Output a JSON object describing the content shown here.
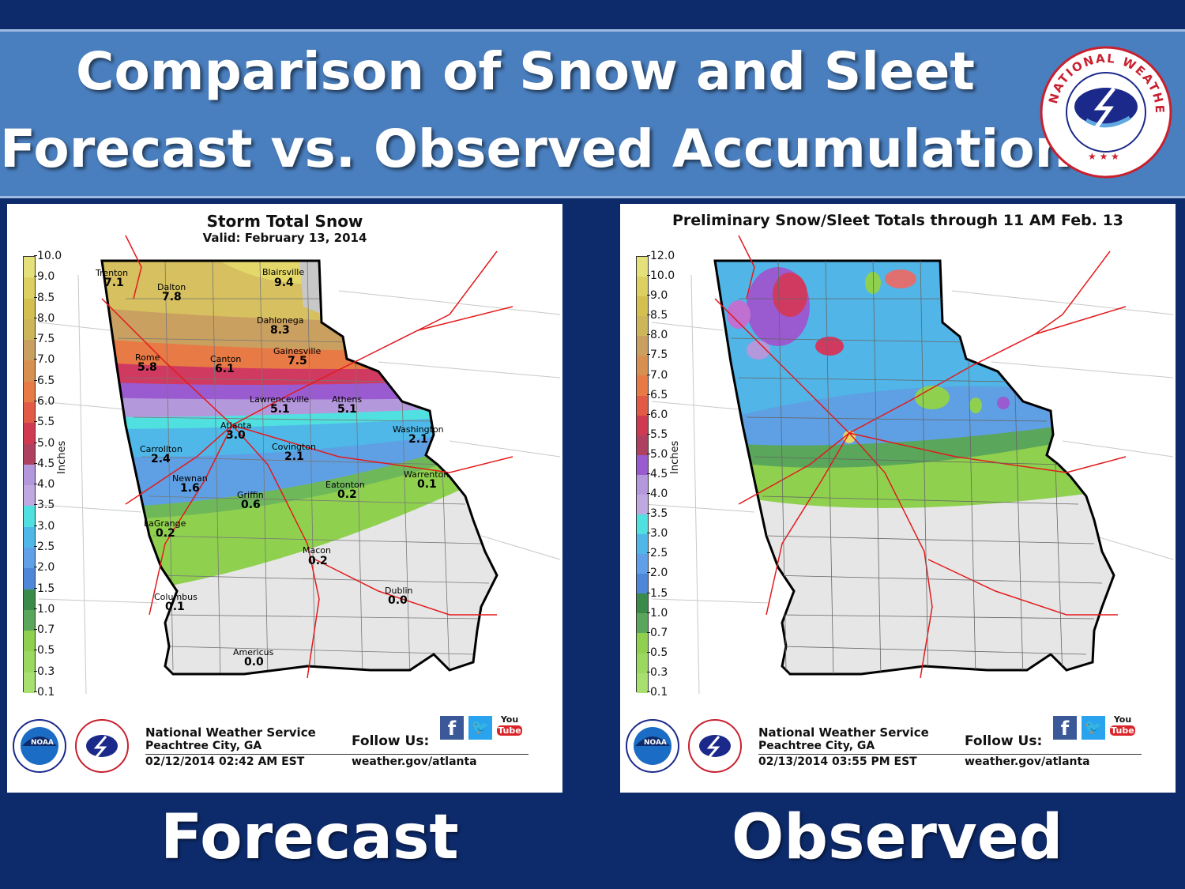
{
  "header": {
    "title_line1": "Comparison of Snow and Sleet",
    "title_line2": "Forecast vs. Observed Accumulations",
    "logo_text": "NATIONAL WEATHER SERVICE"
  },
  "panels": [
    {
      "title": "Storm Total Snow",
      "subtitle": "Valid: February 13, 2014",
      "scale_label": "Inches",
      "scale": [
        "10.0",
        "9.0",
        "8.5",
        "8.0",
        "7.5",
        "7.0",
        "6.5",
        "6.0",
        "5.5",
        "5.0",
        "4.5",
        "4.0",
        "3.5",
        "3.0",
        "2.5",
        "2.0",
        "1.5",
        "1.0",
        "0.7",
        "0.5",
        "0.3",
        "0.1"
      ],
      "cities": [
        {
          "name": "Trenton",
          "value": "7.1"
        },
        {
          "name": "Dalton",
          "value": "7.8"
        },
        {
          "name": "Blairsville",
          "value": "9.4"
        },
        {
          "name": "Dahlonega",
          "value": "8.3"
        },
        {
          "name": "Gainesville",
          "value": "7.5"
        },
        {
          "name": "Rome",
          "value": "5.8"
        },
        {
          "name": "Canton",
          "value": "6.1"
        },
        {
          "name": "Lawrenceville",
          "value": "5.1"
        },
        {
          "name": "Athens",
          "value": "5.1"
        },
        {
          "name": "Atlanta",
          "value": "3.0"
        },
        {
          "name": "Washington",
          "value": "2.1"
        },
        {
          "name": "Carrollton",
          "value": "2.4"
        },
        {
          "name": "Covington",
          "value": "2.1"
        },
        {
          "name": "Warrenton",
          "value": "0.1"
        },
        {
          "name": "Newnan",
          "value": "1.6"
        },
        {
          "name": "Eatonton",
          "value": "0.2"
        },
        {
          "name": "Griffin",
          "value": "0.6"
        },
        {
          "name": "LaGrange",
          "value": "0.2"
        },
        {
          "name": "Macon",
          "value": "0.2"
        },
        {
          "name": "Dublin",
          "value": "0.0"
        },
        {
          "name": "Columbus",
          "value": "0.1"
        },
        {
          "name": "Americus",
          "value": "0.0"
        }
      ],
      "footer": {
        "org": "National Weather Service",
        "city": "Peachtree City, GA",
        "stamp": "02/12/2014 02:42 AM EST",
        "follow": "Follow Us:",
        "web": "weather.gov/atlanta",
        "noaa": "NOAA",
        "youtube_top": "You",
        "youtube_bottom": "Tube"
      },
      "caption": "Forecast"
    },
    {
      "title": "Preliminary Snow/Sleet Totals through 11 AM Feb. 13",
      "scale_label": "Inches",
      "scale": [
        "12.0",
        "10.0",
        "9.0",
        "8.5",
        "8.0",
        "7.5",
        "7.0",
        "6.5",
        "6.0",
        "5.5",
        "5.0",
        "4.5",
        "4.0",
        "3.5",
        "3.0",
        "2.5",
        "2.0",
        "1.5",
        "1.0",
        "0.7",
        "0.5",
        "0.3",
        "0.1"
      ],
      "footer": {
        "org": "National Weather Service",
        "city": "Peachtree City, GA",
        "stamp": "02/13/2014 03:55 PM EST",
        "follow": "Follow Us:",
        "web": "weather.gov/atlanta",
        "noaa": "NOAA",
        "youtube_top": "You",
        "youtube_bottom": "Tube"
      },
      "caption": "Observed"
    }
  ],
  "colors": {
    "background": "#0d2a6b",
    "banner": "#4a7fbf",
    "state_outline": "#000000",
    "highways": "#e31a1c",
    "no_snow": "#e8e8e8"
  }
}
